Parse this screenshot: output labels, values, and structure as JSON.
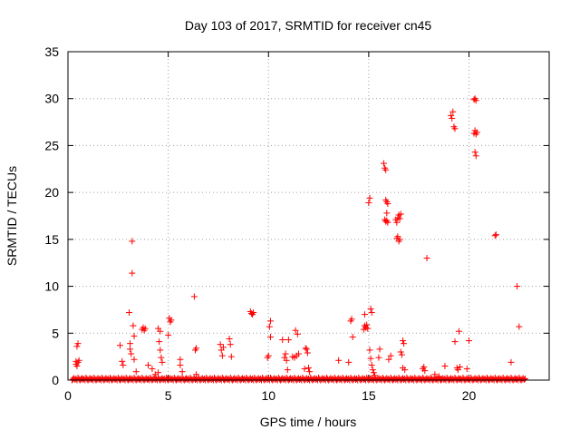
{
  "chart_data": {
    "type": "scatter",
    "title": "Day 103 of 2017, SRMTID for receiver cn45",
    "xlabel": "GPS time / hours",
    "ylabel": "SRMTID / TECUs",
    "xlim": [
      0,
      24
    ],
    "ylim": [
      0,
      35
    ],
    "xticks": [
      0,
      5,
      10,
      15,
      20
    ],
    "yticks": [
      0,
      5,
      10,
      15,
      20,
      25,
      30,
      35
    ],
    "grid": true,
    "marker": "+",
    "series": [
      {
        "name": "SRMTID",
        "color": "#ff0000",
        "baseline": {
          "x_start": 0.2,
          "x_end": 22.8,
          "step": 0.05,
          "y_values": [
            0.0,
            0.1,
            0.2,
            0.05,
            0.15,
            0.0,
            0.25,
            0.1
          ]
        },
        "points": [
          [
            0.4,
            1.7
          ],
          [
            0.4,
            2.0
          ],
          [
            0.45,
            1.5
          ],
          [
            0.45,
            3.6
          ],
          [
            0.5,
            3.9
          ],
          [
            0.5,
            1.9
          ],
          [
            0.55,
            2.1
          ],
          [
            2.6,
            3.7
          ],
          [
            2.7,
            2.0
          ],
          [
            2.75,
            1.6
          ],
          [
            3.05,
            7.2
          ],
          [
            3.1,
            3.3
          ],
          [
            3.1,
            3.9
          ],
          [
            3.15,
            2.8
          ],
          [
            3.2,
            14.8
          ],
          [
            3.2,
            11.4
          ],
          [
            3.25,
            5.8
          ],
          [
            3.3,
            4.7
          ],
          [
            3.3,
            2.2
          ],
          [
            3.4,
            0.9
          ],
          [
            3.7,
            5.4
          ],
          [
            3.75,
            5.6
          ],
          [
            3.8,
            5.3
          ],
          [
            3.85,
            5.5
          ],
          [
            4.0,
            1.6
          ],
          [
            4.2,
            1.2
          ],
          [
            4.35,
            0.6
          ],
          [
            4.5,
            5.5
          ],
          [
            4.55,
            4.1
          ],
          [
            4.6,
            5.2
          ],
          [
            4.6,
            3.2
          ],
          [
            4.65,
            2.4
          ],
          [
            4.7,
            1.9
          ],
          [
            4.5,
            0.8
          ],
          [
            5.0,
            4.8
          ],
          [
            5.05,
            6.6
          ],
          [
            5.1,
            6.2
          ],
          [
            5.15,
            6.4
          ],
          [
            5.6,
            2.2
          ],
          [
            5.6,
            1.6
          ],
          [
            5.7,
            0.9
          ],
          [
            6.3,
            8.9
          ],
          [
            6.35,
            3.2
          ],
          [
            6.4,
            3.4
          ],
          [
            6.4,
            0.6
          ],
          [
            7.6,
            3.8
          ],
          [
            7.65,
            3.2
          ],
          [
            7.7,
            2.6
          ],
          [
            7.75,
            3.5
          ],
          [
            8.05,
            4.4
          ],
          [
            8.1,
            3.8
          ],
          [
            8.15,
            2.5
          ],
          [
            9.1,
            7.3
          ],
          [
            9.15,
            7.1
          ],
          [
            9.2,
            7.0
          ],
          [
            9.25,
            7.2
          ],
          [
            9.95,
            2.4
          ],
          [
            10.0,
            2.6
          ],
          [
            10.05,
            5.7
          ],
          [
            10.1,
            6.3
          ],
          [
            10.1,
            4.6
          ],
          [
            10.7,
            4.3
          ],
          [
            10.8,
            2.4
          ],
          [
            10.85,
            2.8
          ],
          [
            10.9,
            2.1
          ],
          [
            10.95,
            1.1
          ],
          [
            11.0,
            4.3
          ],
          [
            11.2,
            2.5
          ],
          [
            11.3,
            2.4
          ],
          [
            11.35,
            5.3
          ],
          [
            11.4,
            2.6
          ],
          [
            11.45,
            4.9
          ],
          [
            11.5,
            2.8
          ],
          [
            11.8,
            1.2
          ],
          [
            11.85,
            3.4
          ],
          [
            11.9,
            3.3
          ],
          [
            11.95,
            2.9
          ],
          [
            12.0,
            1.3
          ],
          [
            12.05,
            0.9
          ],
          [
            13.5,
            2.1
          ],
          [
            14.0,
            1.9
          ],
          [
            14.1,
            6.3
          ],
          [
            14.15,
            6.5
          ],
          [
            14.2,
            4.6
          ],
          [
            14.75,
            5.4
          ],
          [
            14.8,
            5.8
          ],
          [
            14.8,
            7.0
          ],
          [
            14.85,
            5.6
          ],
          [
            14.9,
            5.9
          ],
          [
            14.95,
            5.5
          ],
          [
            15.0,
            18.9
          ],
          [
            15.05,
            19.4
          ],
          [
            15.05,
            3.2
          ],
          [
            15.1,
            7.6
          ],
          [
            15.1,
            2.3
          ],
          [
            15.15,
            7.2
          ],
          [
            15.15,
            1.6
          ],
          [
            15.2,
            1.1
          ],
          [
            15.25,
            0.8
          ],
          [
            15.3,
            0.5
          ],
          [
            15.5,
            2.4
          ],
          [
            15.55,
            3.3
          ],
          [
            15.75,
            23.1
          ],
          [
            15.8,
            22.6
          ],
          [
            15.85,
            22.4
          ],
          [
            15.85,
            19.2
          ],
          [
            15.9,
            19.0
          ],
          [
            15.95,
            18.8
          ],
          [
            15.9,
            17.8
          ],
          [
            15.8,
            17.1
          ],
          [
            15.85,
            16.9
          ],
          [
            15.9,
            17.0
          ],
          [
            15.95,
            16.8
          ],
          [
            16.1,
            2.6
          ],
          [
            16.0,
            2.2
          ],
          [
            16.35,
            17.1
          ],
          [
            16.4,
            16.8
          ],
          [
            16.45,
            17.3
          ],
          [
            16.5,
            17.6
          ],
          [
            16.55,
            17.2
          ],
          [
            16.6,
            17.7
          ],
          [
            16.4,
            15.1
          ],
          [
            16.45,
            15.3
          ],
          [
            16.5,
            14.8
          ],
          [
            16.55,
            15.0
          ],
          [
            16.6,
            3.0
          ],
          [
            16.65,
            2.7
          ],
          [
            16.7,
            4.2
          ],
          [
            16.75,
            3.9
          ],
          [
            16.7,
            1.3
          ],
          [
            16.8,
            1.1
          ],
          [
            17.7,
            1.2
          ],
          [
            17.75,
            1.4
          ],
          [
            17.8,
            1.0
          ],
          [
            17.9,
            13.0
          ],
          [
            18.3,
            0.6
          ],
          [
            18.5,
            0.4
          ],
          [
            18.8,
            1.5
          ],
          [
            19.1,
            28.2
          ],
          [
            19.15,
            27.9
          ],
          [
            19.2,
            28.6
          ],
          [
            19.25,
            27.0
          ],
          [
            19.3,
            26.8
          ],
          [
            19.3,
            4.1
          ],
          [
            19.4,
            1.3
          ],
          [
            19.45,
            1.1
          ],
          [
            19.5,
            5.2
          ],
          [
            19.55,
            1.4
          ],
          [
            19.9,
            1.2
          ],
          [
            20.0,
            4.2
          ],
          [
            20.25,
            26.3
          ],
          [
            20.3,
            26.6
          ],
          [
            20.35,
            26.2
          ],
          [
            20.4,
            26.4
          ],
          [
            20.25,
            29.9
          ],
          [
            20.3,
            30.0
          ],
          [
            20.35,
            29.8
          ],
          [
            20.3,
            24.3
          ],
          [
            20.35,
            23.9
          ],
          [
            21.3,
            15.4
          ],
          [
            21.35,
            15.5
          ],
          [
            22.1,
            1.9
          ],
          [
            22.4,
            10.0
          ],
          [
            22.5,
            5.7
          ]
        ]
      }
    ]
  }
}
